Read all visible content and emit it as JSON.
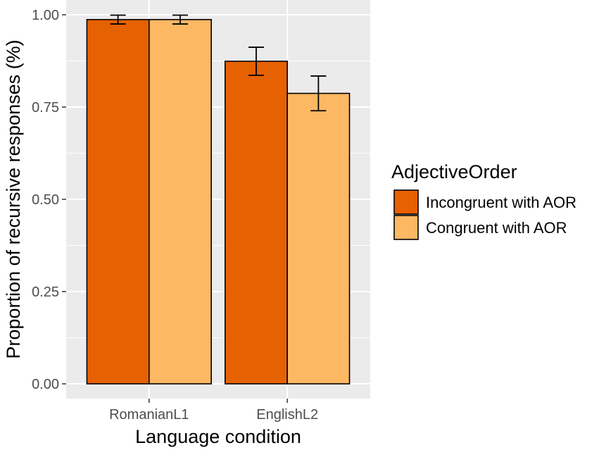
{
  "chart_data": {
    "type": "bar",
    "categories": [
      "RomanianL1",
      "EnglishL2"
    ],
    "series": [
      {
        "name": "Incongruent with AOR",
        "color": "#E66101",
        "values": [
          0.987,
          0.874
        ],
        "error_low": [
          0.975,
          0.836
        ],
        "error_high": [
          0.999,
          0.912
        ]
      },
      {
        "name": "Congruent with AOR",
        "color": "#FDB863",
        "values": [
          0.987,
          0.787
        ],
        "error_low": [
          0.975,
          0.74
        ],
        "error_high": [
          0.999,
          0.834
        ]
      }
    ],
    "xlabel": "Language condition",
    "ylabel": "Proportion of recursive responses (%)",
    "ylim": [
      -0.04,
      1.04
    ],
    "yticks": [
      0,
      0.25,
      0.5,
      0.75,
      1.0
    ],
    "ytick_labels": [
      "0.00",
      "0.25",
      "0.50",
      "0.75",
      "1.00"
    ],
    "legend": {
      "title": "AdjectiveOrder",
      "position": "right"
    },
    "grid": true,
    "panel_background": "#EBEBEB",
    "grid_color": "#FFFFFF",
    "bar_outline": "#000000"
  }
}
